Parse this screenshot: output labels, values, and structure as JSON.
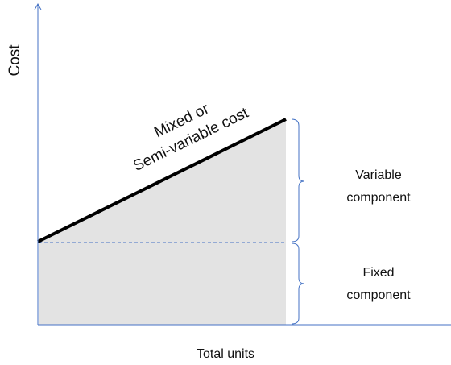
{
  "axes": {
    "y_label": "Cost",
    "x_label": "Total units"
  },
  "line_label": [
    "Mixed or",
    "Semi-variable cost"
  ],
  "components": [
    {
      "label": [
        "Variable",
        "component"
      ]
    },
    {
      "label": [
        "Fixed",
        "component"
      ]
    }
  ]
}
